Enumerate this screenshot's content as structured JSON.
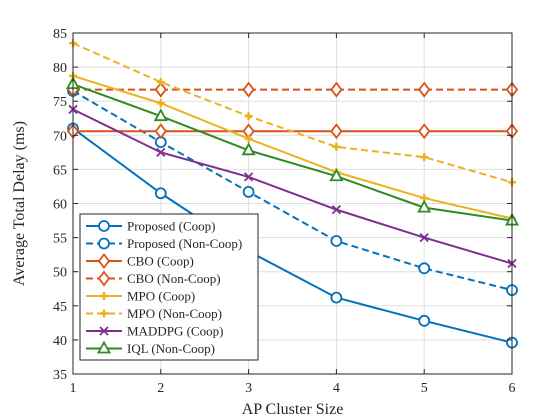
{
  "chart_data": {
    "type": "line",
    "title": "",
    "xlabel": "AP Cluster Size",
    "ylabel": "Average Total Delay (ms)",
    "x": [
      1,
      2,
      3,
      4,
      5,
      6
    ],
    "xlim": [
      1,
      6
    ],
    "ylim": [
      35,
      85
    ],
    "xticks": [
      "1",
      "2",
      "3",
      "4",
      "5",
      "6"
    ],
    "yticks": [
      "35",
      "40",
      "45",
      "50",
      "55",
      "60",
      "65",
      "70",
      "75",
      "80",
      "85"
    ],
    "grid": true,
    "legend_position": "bottom-left",
    "series": [
      {
        "name": "Proposed (Coop)",
        "values": [
          71.0,
          61.5,
          53.0,
          46.2,
          42.8,
          39.6
        ],
        "color": "#0072bd",
        "dash": "solid",
        "marker": "circle"
      },
      {
        "name": "Proposed (Non-Coop)",
        "values": [
          76.5,
          69.0,
          61.7,
          54.5,
          50.5,
          47.3
        ],
        "color": "#0072bd",
        "dash": "dashed",
        "marker": "circle"
      },
      {
        "name": "CBO (Coop)",
        "values": [
          70.6,
          70.6,
          70.6,
          70.6,
          70.6,
          70.6
        ],
        "color": "#d95319",
        "dash": "solid",
        "marker": "diamond"
      },
      {
        "name": "CBO (Non-Coop)",
        "values": [
          76.7,
          76.7,
          76.7,
          76.7,
          76.7,
          76.7
        ],
        "color": "#d95319",
        "dash": "dashed",
        "marker": "diamond"
      },
      {
        "name": "MPO (Coop)",
        "values": [
          78.7,
          74.7,
          69.5,
          64.6,
          60.8,
          57.8
        ],
        "color": "#edb120",
        "dash": "solid",
        "marker": "plus"
      },
      {
        "name": "MPO (Non-Coop)",
        "values": [
          83.5,
          77.8,
          72.8,
          68.3,
          66.8,
          63.1
        ],
        "color": "#edb120",
        "dash": "dashed",
        "marker": "plus"
      },
      {
        "name": "MADDPG (Coop)",
        "values": [
          73.8,
          67.5,
          63.9,
          59.1,
          55.0,
          51.2
        ],
        "color": "#7e2f8e",
        "dash": "solid",
        "marker": "x"
      },
      {
        "name": "IQL (Non-Coop)",
        "values": [
          77.5,
          72.8,
          67.8,
          64.0,
          59.4,
          57.5
        ],
        "color": "#2e8b1f",
        "dash": "solid",
        "marker": "triangle"
      }
    ]
  }
}
